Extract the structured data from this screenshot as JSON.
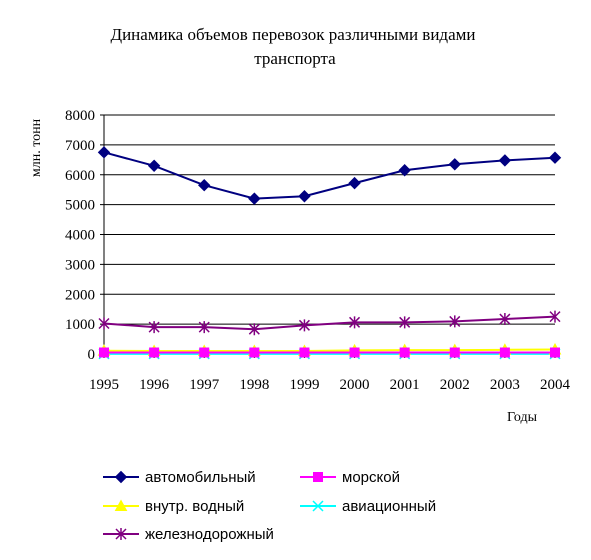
{
  "chart_data": {
    "type": "line",
    "title_line1": "Динамика объемов перевозок различными видами",
    "title_line2": "транспорта",
    "ylabel": "млн. тонн",
    "xlabel": "Годы",
    "ylim": [
      0,
      8000
    ],
    "yticks": [
      0,
      1000,
      2000,
      3000,
      4000,
      5000,
      6000,
      7000,
      8000
    ],
    "categories": [
      "1995",
      "1996",
      "1997",
      "1998",
      "1999",
      "2000",
      "2001",
      "2002",
      "2003",
      "2004"
    ],
    "grid": true,
    "legend_position": "bottom",
    "series": [
      {
        "name": "автомобильный",
        "color": "#000080",
        "marker": "diamond",
        "values": [
          6750,
          6300,
          5650,
          5200,
          5280,
          5720,
          6150,
          6350,
          6480,
          6570
        ]
      },
      {
        "name": "морской",
        "color": "#ff00ff",
        "marker": "square",
        "values": [
          50,
          50,
          50,
          50,
          50,
          50,
          50,
          50,
          50,
          50
        ]
      },
      {
        "name": "внутр. водный",
        "color": "#ffff00",
        "marker": "triangle",
        "values": [
          110,
          100,
          100,
          100,
          100,
          120,
          130,
          130,
          140,
          150
        ]
      },
      {
        "name": "авиационный",
        "color": "#00ffff",
        "marker": "x",
        "values": [
          5,
          5,
          5,
          5,
          5,
          5,
          5,
          5,
          5,
          5
        ]
      },
      {
        "name": "железнодорожный",
        "color": "#800080",
        "marker": "star",
        "values": [
          1020,
          900,
          900,
          830,
          960,
          1060,
          1060,
          1090,
          1170,
          1250
        ]
      }
    ]
  }
}
